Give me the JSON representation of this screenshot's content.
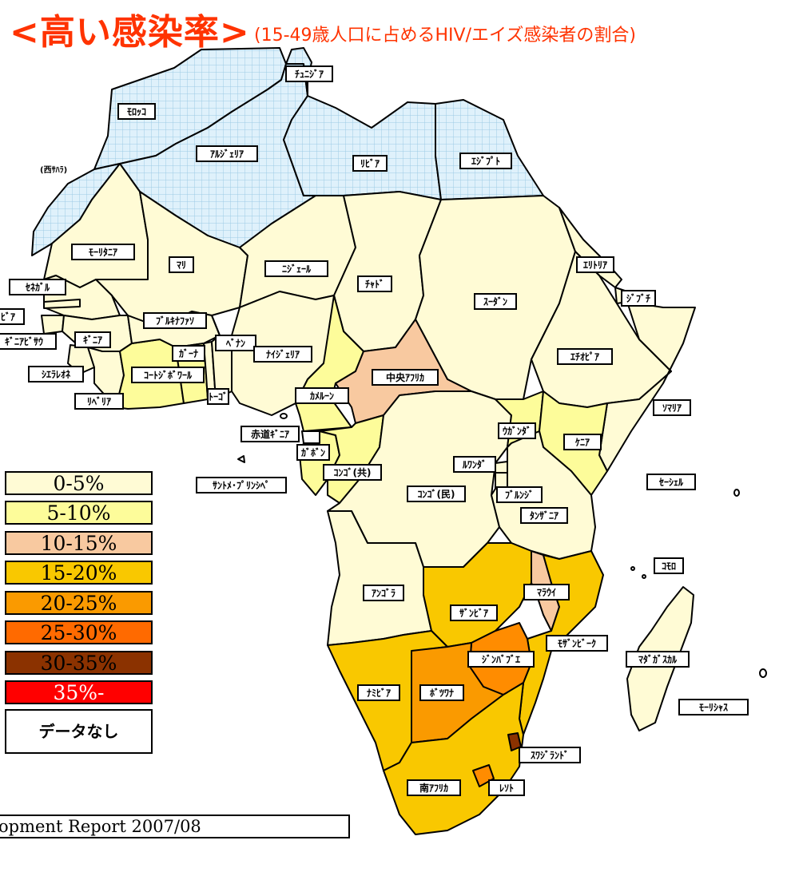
{
  "title": {
    "main": "<高い感染率>",
    "sub": "(15-49歳人口に占めるHIV/エイズ感染者の割合)"
  },
  "colors": {
    "0-5%": "#fffbd5",
    "5-10%": "#fdfc9a",
    "10-15%": "#f8c9a0",
    "15-20%": "#f9c800",
    "20-25%": "#fa9a00",
    "25-30%": "#ff6a00",
    "30-35%": "#8b3200",
    "35%-": "#ff0000",
    "no_data_north": "#dff1fb",
    "no_data_white": "#ffffff",
    "gray": "#a8a8a8"
  },
  "legend": {
    "items": [
      {
        "label": "0-5%",
        "color": "#fffbd5"
      },
      {
        "label": "5-10%",
        "color": "#fdfc9a"
      },
      {
        "label": "10-15%",
        "color": "#f8c9a0"
      },
      {
        "label": "15-20%",
        "color": "#f9c800"
      },
      {
        "label": "20-25%",
        "color": "#fa9a00"
      },
      {
        "label": "25-30%",
        "color": "#ff6a00"
      },
      {
        "label": "30-35%",
        "color": "#8b3200"
      },
      {
        "label": "35%-",
        "color": "#ff0000"
      }
    ],
    "no_data": "データなし"
  },
  "countries": {
    "tunisia": "ﾁｭﾆｼﾞｱ",
    "morocco": "ﾓﾛｯｺ",
    "algeria": "ｱﾙｼﾞｪﾘｱ",
    "libya": "ﾘﾋﾞｱ",
    "egypt": "ｴｼﾞﾌﾟﾄ",
    "western_sahara": "(西ｻﾊﾗ)",
    "mauritania": "ﾓｰﾘﾀﾆｱ",
    "mali": "ﾏﾘ",
    "niger": "ﾆｼﾞｪｰﾙ",
    "chad": "ﾁｬﾄﾞ",
    "sudan": "ｽｰﾀﾞﾝ",
    "eritrea": "ｴﾘﾄﾘｱ",
    "djibouti": "ｼﾞﾌﾞﾁ",
    "ethiopia": "ｴﾁｵﾋﾟｱ",
    "somalia": "ｿﾏﾘｱ",
    "senegal": "ｾﾈｶﾞﾙ",
    "gambia": "ﾋﾞｱ",
    "guinea_bissau": "ｷﾞﾆｱﾋﾞｻｳ",
    "guinea": "ｷﾞﾆｱ",
    "sierra_leone": "ｼｴﾗﾚｵﾈ",
    "liberia": "ﾘﾍﾞﾘｱ",
    "burkina_faso": "ﾌﾞﾙｷﾅﾌｧｿ",
    "ghana": "ｶﾞｰﾅ",
    "cote_divoire": "ｺｰﾄｼﾞﾎﾞﾜｰﾙ",
    "togo": "ﾄｰｺﾞ",
    "benin": "ﾍﾞﾅﾝ",
    "nigeria": "ﾅｲｼﾞｪﾘｱ",
    "cameroon": "ｶﾒﾙｰﾝ",
    "car": "中央ｱﾌﾘｶ",
    "eq_guinea": "赤道ｷﾞﾆｱ",
    "gabon": "ｶﾞﾎﾞﾝ",
    "sao_tome": "ｻﾝﾄﾒ･ﾌﾟﾘﾝｼﾍﾟ",
    "congo_rep": "ｺﾝｺﾞ(共)",
    "congo_dem": "ｺﾝｺﾞ(民)",
    "uganda": "ｳｶﾞﾝﾀﾞ",
    "kenya": "ｹﾆｱ",
    "rwanda": "ﾙﾜﾝﾀﾞ",
    "burundi": "ﾌﾞﾙﾝｼﾞ",
    "tanzania": "ﾀﾝｻﾞﾆｱ",
    "seychelles": "ｾｰｼｪﾙ",
    "comoros": "ｺﾓﾛ",
    "angola": "ｱﾝｺﾞﾗ",
    "malawi": "ﾏﾗｳｲ",
    "zambia": "ｻﾞﾝﾋﾞｱ",
    "mozambique": "ﾓｻﾞﾝﾋﾞｰｸ",
    "zimbabwe": "ｼﾞﾝﾊﾞﾌﾞｴ",
    "madagascar": "ﾏﾀﾞｶﾞｽｶﾙ",
    "namibia": "ﾅﾐﾋﾞｱ",
    "botswana": "ﾎﾞﾂﾜﾅ",
    "mauritius": "ﾓｰﾘｼｬｽ",
    "swaziland": "ｽﾜｼﾞﾗﾝﾄﾞ",
    "south_africa": "南ｱﾌﾘｶ",
    "lesotho": "ﾚｿﾄ"
  },
  "source": "opment Report 2007/08"
}
